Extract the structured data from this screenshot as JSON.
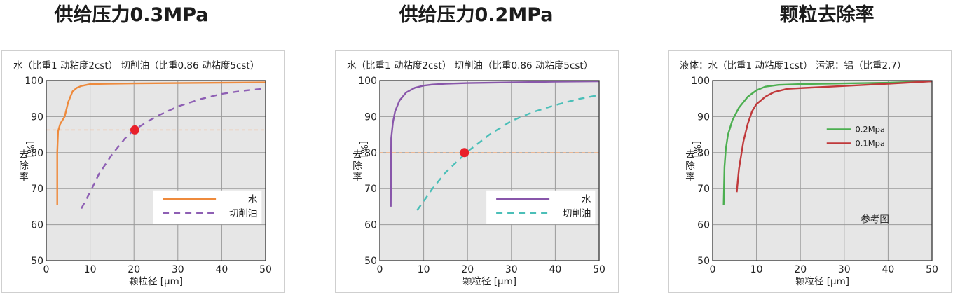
{
  "panels": [
    {
      "title": "供给压力0.3MPa",
      "subtitle": "水（比重1 动粘度2cst） 切削油（比重0.86 动粘度5cst）"
    },
    {
      "title": "供给压力0.2MPa",
      "subtitle": "水（比重1 动粘度2cst） 切削油（比重0.86 动粘度5cst）"
    },
    {
      "title": "颗粒去除率",
      "subtitle": "液体：水（比重1 动粘度1cst） 污泥：铝（比重2.7）"
    }
  ],
  "chart_data": [
    {
      "type": "line",
      "title": "供给压力0.3MPa",
      "subtitle": "水（比重1 动粘度2cst） 切削油（比重0.86 动粘度5cst）",
      "xlabel": "颗粒径 [μm]",
      "ylabel": "去除率 [%]",
      "xlim": [
        0,
        50
      ],
      "ylim": [
        50,
        100
      ],
      "xticks": [
        0,
        10,
        20,
        30,
        40,
        50
      ],
      "yticks": [
        50,
        60,
        70,
        80,
        90,
        100
      ],
      "grid": true,
      "legend_position": "bottom-right",
      "series": [
        {
          "name": "水",
          "style": "solid",
          "color": "#ee8a3c",
          "x": [
            2.5,
            2.5,
            2.7,
            3.2,
            4.2,
            5,
            6,
            7,
            8,
            10,
            14,
            20,
            30,
            40,
            50
          ],
          "y": [
            65.5,
            80,
            86,
            88,
            90,
            94,
            97,
            98,
            98.5,
            99,
            99.1,
            99.2,
            99.3,
            99.4,
            99.5
          ]
        },
        {
          "name": "切削油",
          "style": "dashed",
          "color": "#8e5fb4",
          "x": [
            8,
            10,
            12,
            15,
            18,
            20,
            25,
            30,
            35,
            40,
            45,
            50
          ],
          "y": [
            64.5,
            69,
            74,
            79.5,
            84,
            86.3,
            90,
            92.8,
            94.8,
            96.3,
            97.2,
            97.8
          ]
        }
      ],
      "reference_line": {
        "y": 86.3,
        "color": "#f2b68f"
      },
      "marker": {
        "x": 20.2,
        "y": 86.3,
        "color": "#e8202a"
      }
    },
    {
      "type": "line",
      "title": "供给压力0.2MPa",
      "subtitle": "水（比重1 动粘度2cst） 切削油（比重0.86 动粘度5cst）",
      "xlabel": "颗粒径 [μm]",
      "ylabel": "去除率 [%]",
      "xlim": [
        0,
        50
      ],
      "ylim": [
        50,
        100
      ],
      "xticks": [
        0,
        10,
        20,
        30,
        40,
        50
      ],
      "yticks": [
        50,
        60,
        70,
        80,
        90,
        100
      ],
      "grid": true,
      "legend_position": "bottom-right",
      "series": [
        {
          "name": "水",
          "style": "solid",
          "color": "#8856aa",
          "x": [
            2.5,
            2.6,
            3,
            3.5,
            4.5,
            6,
            8,
            10,
            12,
            15,
            20,
            30,
            40,
            50
          ],
          "y": [
            65,
            84,
            88.5,
            91.5,
            94.5,
            96.7,
            98,
            98.6,
            98.9,
            99.1,
            99.3,
            99.5,
            99.7,
            99.8
          ]
        },
        {
          "name": "切削油",
          "style": "dashed",
          "color": "#4bbfb8",
          "x": [
            8.5,
            10,
            12,
            15,
            18,
            20,
            25,
            30,
            35,
            40,
            45,
            50
          ],
          "y": [
            64,
            66.5,
            70,
            74.5,
            78,
            80.3,
            85,
            88.8,
            91.3,
            93.2,
            94.8,
            96
          ]
        }
      ],
      "reference_line": {
        "y": 80,
        "color": "#f2b68f"
      },
      "marker": {
        "x": 19.3,
        "y": 80,
        "color": "#e8202a"
      }
    },
    {
      "type": "line",
      "title": "颗粒去除率",
      "subtitle": "液体：水（比重1 动粘度1cst） 污泥：铝（比重2.7）",
      "xlabel": "颗粒径 [μm]",
      "ylabel": "去除率 [%]",
      "xlim": [
        0,
        50
      ],
      "ylim": [
        50,
        100
      ],
      "xticks": [
        0,
        10,
        20,
        30,
        40,
        50
      ],
      "yticks": [
        50,
        60,
        70,
        80,
        90,
        100
      ],
      "grid": true,
      "legend_position": "upper-middle",
      "annotation": "参考图",
      "series": [
        {
          "name": "0.2Mpa",
          "style": "solid",
          "color": "#4caf50",
          "x": [
            2.5,
            2.7,
            3,
            3.5,
            4.5,
            6,
            8,
            10,
            12,
            15,
            20,
            30,
            40,
            50
          ],
          "y": [
            65.5,
            76,
            81,
            85,
            89,
            92.5,
            95.5,
            97.3,
            98.3,
            98.8,
            99,
            99.2,
            99.4,
            99.8
          ]
        },
        {
          "name": "0.1Mpa",
          "style": "solid",
          "color": "#c0393b",
          "x": [
            5.5,
            6,
            7,
            8,
            9,
            10,
            11,
            12,
            14,
            17,
            20,
            30,
            40,
            50
          ],
          "y": [
            69,
            75.5,
            83,
            88,
            91.5,
            93.5,
            94.5,
            95.5,
            96.8,
            97.7,
            97.9,
            98.5,
            99.1,
            99.8
          ]
        }
      ]
    }
  ]
}
